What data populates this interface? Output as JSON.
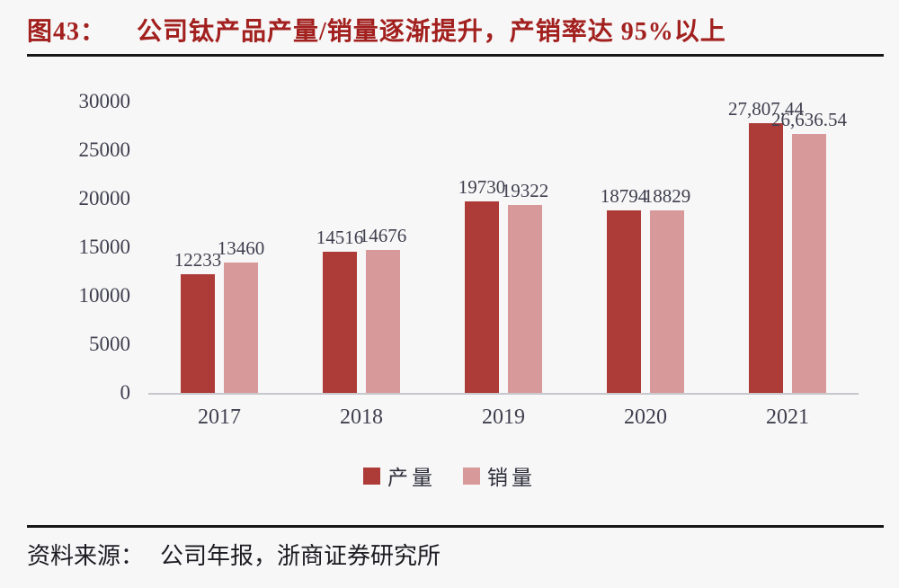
{
  "title": {
    "prefix": "图43：",
    "text": "公司钛产品产量/销量逐渐提升，产销率达 95%以上"
  },
  "source": {
    "label": "资料来源：",
    "text": "公司年报，浙商证券研究所"
  },
  "colors": {
    "title_red": "#a2201e",
    "production_bar": "#ad3b38",
    "sales_bar": "#d8999a",
    "axis_text": "#3f3f4e",
    "rule_black": "#161616",
    "baseline_gray": "#c7c7cc",
    "background": "#f7f7f8"
  },
  "chart_data": {
    "type": "bar",
    "categories": [
      "2017",
      "2018",
      "2019",
      "2020",
      "2021"
    ],
    "series": [
      {
        "name": "产量",
        "color": "#ad3b38",
        "values": [
          12233,
          14516,
          19730,
          18794,
          27807.44
        ],
        "labels": [
          "12233",
          "14516",
          "19730",
          "18794",
          "27,807.44"
        ]
      },
      {
        "name": "销量",
        "color": "#d8999a",
        "values": [
          13460,
          14676,
          19322,
          18829,
          26636.54
        ],
        "labels": [
          "13460",
          "14676",
          "19322",
          "18829",
          "26,636.54"
        ]
      }
    ],
    "title": "公司钛产品产量/销量逐渐提升，产销率达 95%以上",
    "xlabel": "",
    "ylabel": "",
    "ylim": [
      0,
      30000
    ],
    "yticks": [
      0,
      5000,
      10000,
      15000,
      20000,
      25000,
      30000
    ],
    "grid": false,
    "legend_position": "bottom",
    "data_labels": true
  }
}
